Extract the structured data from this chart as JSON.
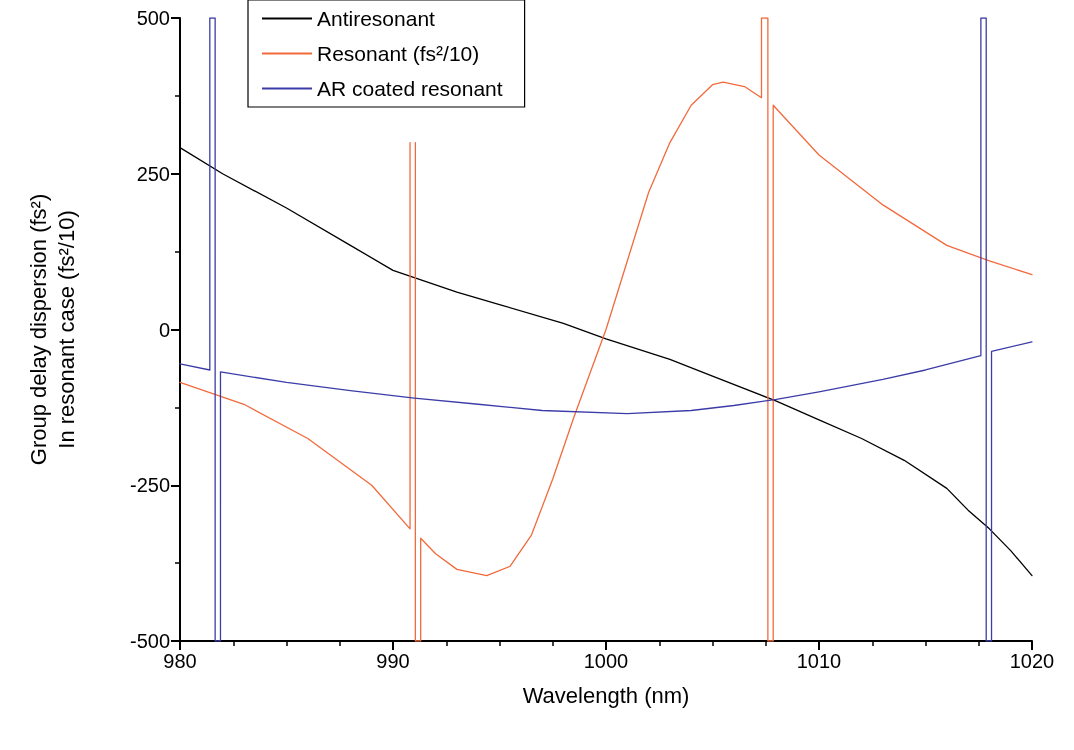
{
  "chart_data": {
    "type": "line",
    "xlabel": "Wavelength (nm)",
    "ylabel": "Group delay dispersion (fs²)\nIn resonant case (fs²/10)",
    "xlim": [
      980,
      1020
    ],
    "xticks": [
      980,
      990,
      1000,
      1010,
      1020
    ],
    "ylim": [
      -500,
      500
    ],
    "yticks": [
      -500,
      -250,
      0,
      250,
      500
    ],
    "legend": "top",
    "marker": "none",
    "line_style": "solid",
    "grid": false,
    "series": [
      {
        "name": "Antiresonant",
        "color": "#000000",
        "x": [
          980,
          982,
          985,
          988,
          990,
          993,
          995,
          998,
          1000,
          1003,
          1005,
          1008,
          1010,
          1012,
          1014,
          1016,
          1017,
          1018,
          1019,
          1020
        ],
        "values": [
          292,
          250,
          195,
          135,
          95,
          60,
          40,
          10,
          -15,
          -48,
          -75,
          -115,
          -145,
          -175,
          -210,
          -255,
          -290,
          -320,
          -355,
          -395
        ]
      },
      {
        "name": "Resonant (fs²/10)",
        "color": "#f26a3c",
        "x": [
          980,
          983,
          986,
          989,
          990.8,
          990.8,
          990.9,
          991.05,
          991.05,
          991.3,
          991.3,
          992,
          993,
          994.4,
          995.5,
          996.5,
          997.5,
          998.5,
          1000,
          1001,
          1002,
          1003,
          1004,
          1005,
          1005.5,
          1006.5,
          1007.3,
          1007.3,
          1007.6,
          1007.6,
          1007.85,
          1007.85,
          1010,
          1013,
          1016,
          1018,
          1020
        ],
        "values": [
          -85,
          -120,
          -175,
          -250,
          -320,
          300,
          null,
          300,
          -500,
          -500,
          -335,
          -360,
          -385,
          -395,
          -380,
          -330,
          -240,
          -140,
          0,
          110,
          220,
          300,
          360,
          393,
          397,
          390,
          372,
          500,
          500,
          -500,
          -500,
          360,
          280,
          200,
          135,
          110,
          88
        ]
      },
      {
        "name": "AR coated resonant",
        "color": "#3c3ca8",
        "x": [
          980,
          981.4,
          981.4,
          981.65,
          981.65,
          981.9,
          981.9,
          985,
          988,
          991,
          994,
          997,
          1001,
          1004,
          1006,
          1008,
          1010,
          1013,
          1015,
          1017.6,
          1017.6,
          1017.85,
          1017.85,
          1018.1,
          1018.1,
          1020
        ],
        "values": [
          -55,
          -65,
          500,
          500,
          -500,
          -500,
          -68,
          -85,
          -98,
          -110,
          -120,
          -130,
          -135,
          -130,
          -122,
          -112,
          -100,
          -80,
          -65,
          -42,
          500,
          500,
          -500,
          -500,
          -35,
          -20
        ]
      }
    ]
  }
}
